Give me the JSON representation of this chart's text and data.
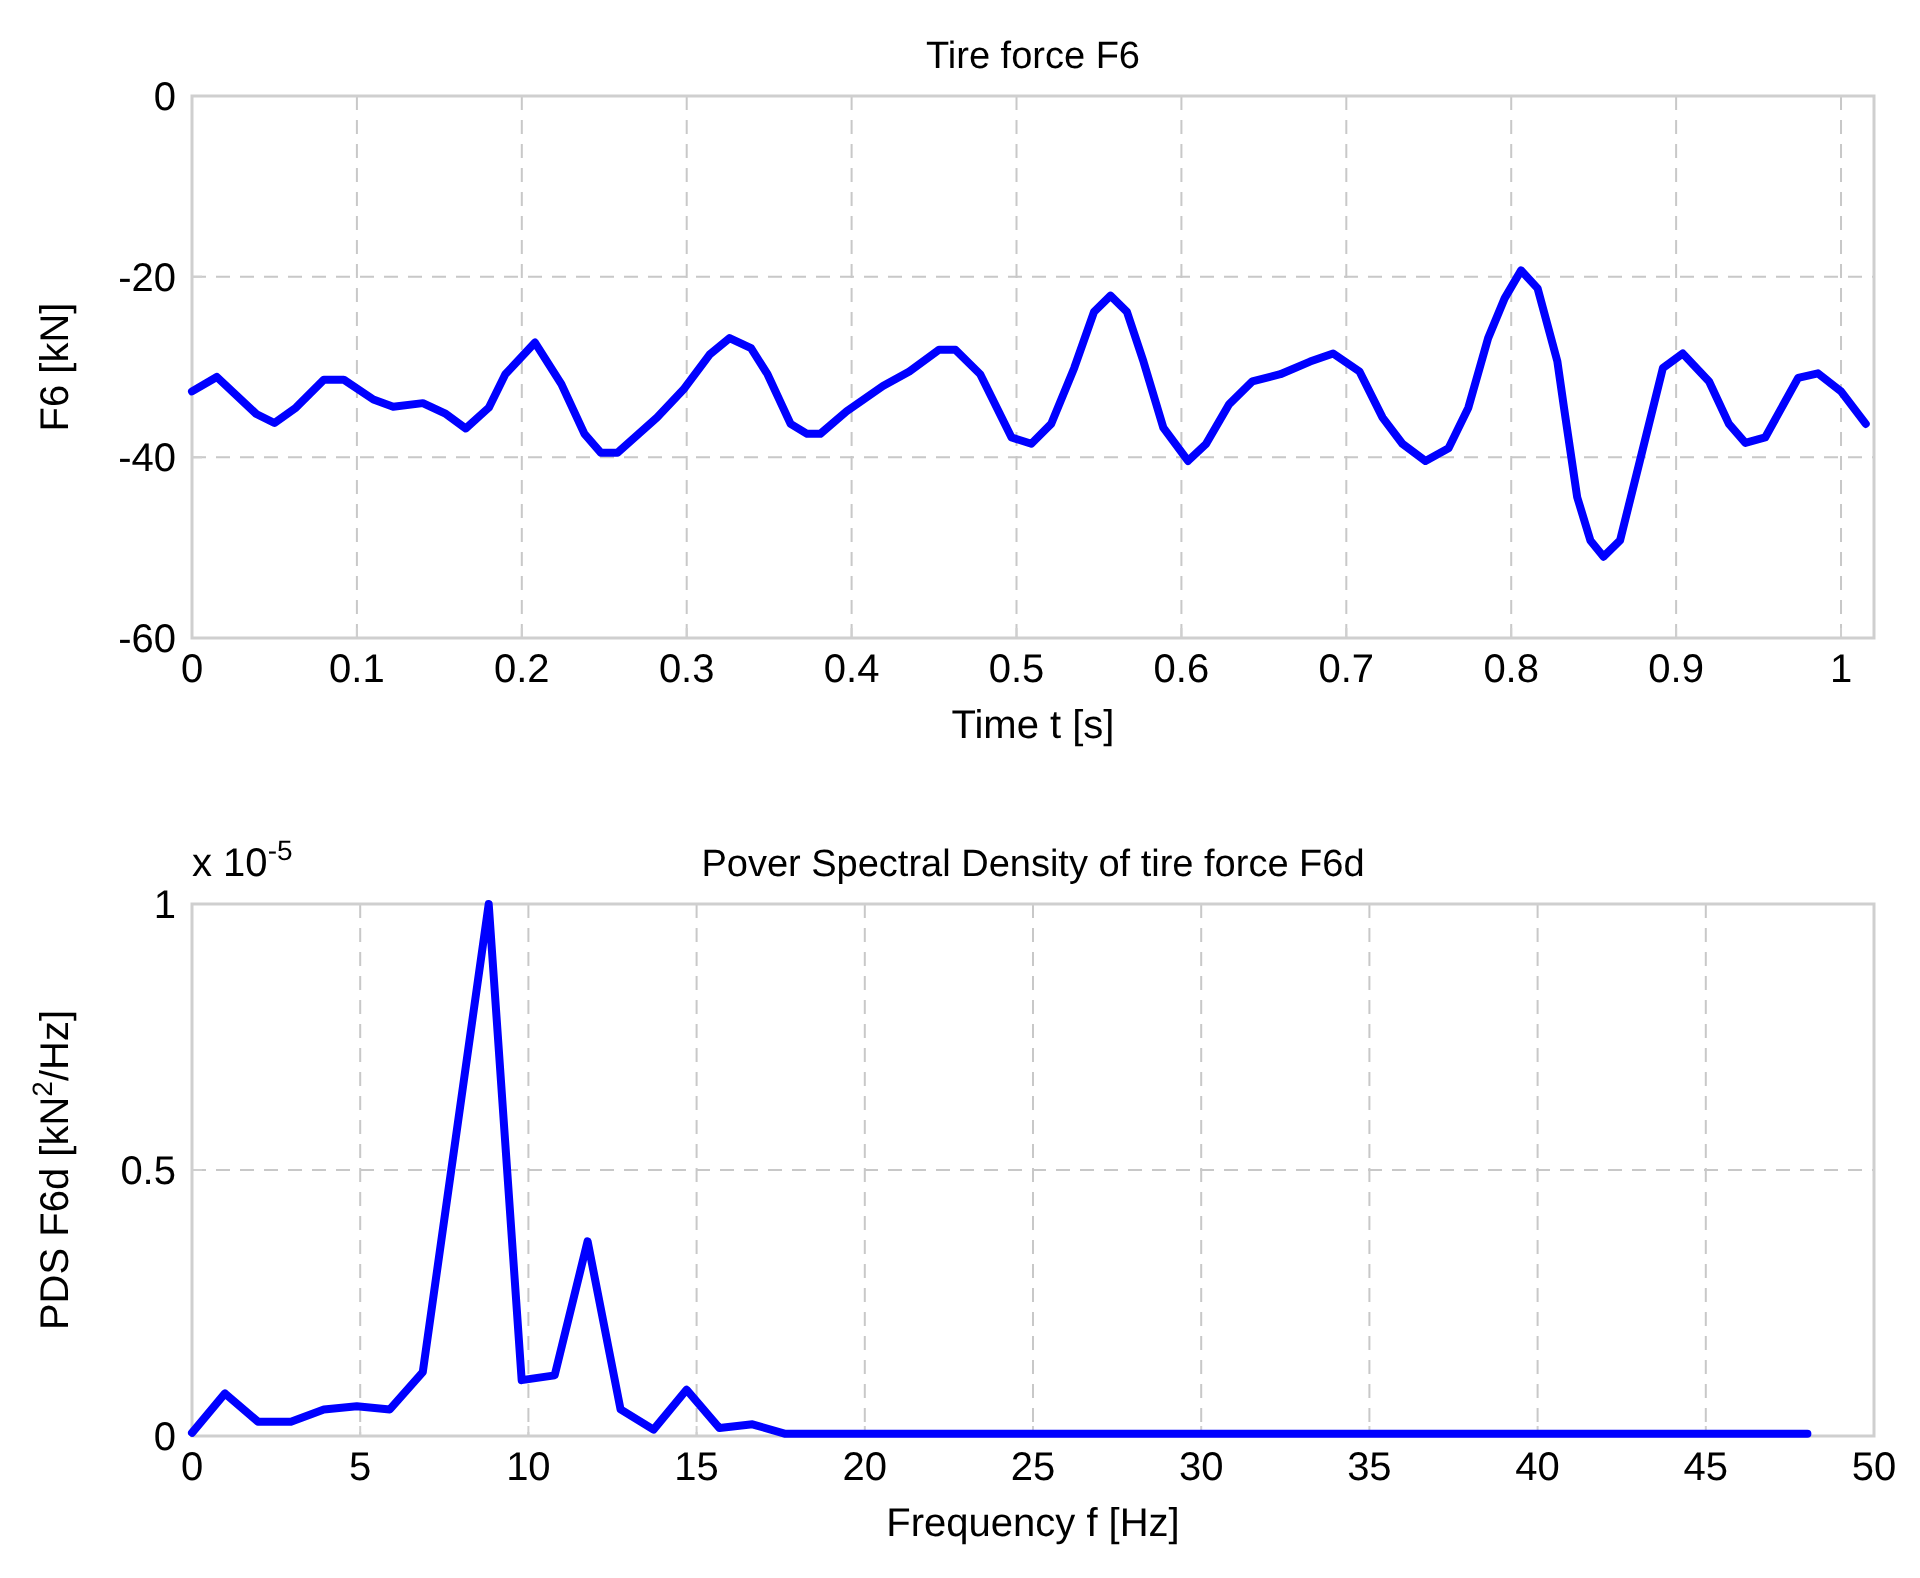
{
  "chart_data": [
    {
      "type": "line",
      "title": "Tire force F6",
      "xlabel": "Time  t  [s]",
      "ylabel": "F6  [kN]",
      "xlim": [
        0,
        1.02
      ],
      "xticks": [
        0,
        0.1,
        0.2,
        0.3,
        0.4,
        0.5,
        0.6,
        0.7,
        0.8,
        0.9,
        1
      ],
      "ylim": [
        -60,
        0
      ],
      "yticks": [
        -60,
        -40,
        -20,
        0
      ],
      "grid": true,
      "line_style": "solid",
      "marker": "none",
      "x": [
        0,
        0.015,
        0.039,
        0.05,
        0.063,
        0.08,
        0.092,
        0.11,
        0.122,
        0.14,
        0.154,
        0.166,
        0.18,
        0.19,
        0.208,
        0.224,
        0.238,
        0.248,
        0.258,
        0.282,
        0.298,
        0.314,
        0.326,
        0.339,
        0.349,
        0.363,
        0.373,
        0.381,
        0.397,
        0.419,
        0.435,
        0.453,
        0.463,
        0.478,
        0.497,
        0.509,
        0.521,
        0.535,
        0.547,
        0.557,
        0.567,
        0.577,
        0.589,
        0.604,
        0.615,
        0.629,
        0.643,
        0.66,
        0.678,
        0.692,
        0.708,
        0.722,
        0.734,
        0.748,
        0.762,
        0.774,
        0.786,
        0.796,
        0.806,
        0.816,
        0.828,
        0.832,
        0.84,
        0.848,
        0.856,
        0.866,
        0.878,
        0.892,
        0.904,
        0.92,
        0.932,
        0.942,
        0.954,
        0.974,
        0.986,
        1.0,
        1.015
      ],
      "series": [
        {
          "color": "#0000ff",
          "values": [
            -32.7,
            -31.1,
            -35.2,
            -36.2,
            -34.5,
            -31.4,
            -31.4,
            -33.6,
            -34.4,
            -34.0,
            -35.2,
            -36.8,
            -34.5,
            -30.8,
            -27.3,
            -31.9,
            -37.4,
            -39.5,
            -39.5,
            -35.6,
            -32.5,
            -28.6,
            -26.8,
            -27.9,
            -30.8,
            -36.3,
            -37.4,
            -37.4,
            -34.9,
            -32.1,
            -30.5,
            -28.1,
            -28.1,
            -30.8,
            -37.8,
            -38.5,
            -36.3,
            -30.1,
            -23.9,
            -22.1,
            -23.9,
            -29.4,
            -36.7,
            -40.4,
            -38.5,
            -34.1,
            -31.6,
            -30.8,
            -29.4,
            -28.5,
            -30.5,
            -35.6,
            -38.5,
            -40.4,
            -39.0,
            -34.5,
            -26.8,
            -22.4,
            -19.3,
            -21.3,
            -29.4,
            -34.5,
            -44.4,
            -49.2,
            -51.0,
            -49.2,
            -40.4,
            -30.1,
            -28.5,
            -31.6,
            -36.3,
            -38.4,
            -37.8,
            -31.2,
            -30.7,
            -32.7,
            -36.3
          ]
        }
      ]
    },
    {
      "type": "line",
      "title": "Pover Spectral Density of tire force F6d",
      "xlabel": "Frequency   f  [Hz]",
      "ylabel": "PDS F6d  [kN$^{2}$/Hz]",
      "annotations": [
        "x 10$^{-5}$"
      ],
      "xlim": [
        0,
        50
      ],
      "xticks": [
        0,
        5,
        10,
        15,
        20,
        25,
        30,
        35,
        40,
        45,
        50
      ],
      "ylim": [
        0,
        1
      ],
      "yticks": [
        0,
        0.5,
        1
      ],
      "grid": true,
      "line_style": "solid",
      "marker": "none",
      "x": [
        0,
        0.98,
        1.96,
        2.94,
        3.92,
        4.9,
        5.88,
        6.86,
        7.84,
        8.82,
        9.8,
        10.78,
        11.76,
        12.74,
        13.72,
        14.7,
        15.68,
        16.66,
        17.64,
        48.02
      ],
      "series": [
        {
          "color": "#0000ff",
          "values": [
            0.006,
            0.08,
            0.027,
            0.027,
            0.05,
            0.056,
            0.05,
            0.12,
            0.56,
            1.0,
            0.105,
            0.114,
            0.366,
            0.05,
            0.012,
            0.087,
            0.015,
            0.022,
            0.004,
            0.004
          ]
        }
      ]
    }
  ]
}
